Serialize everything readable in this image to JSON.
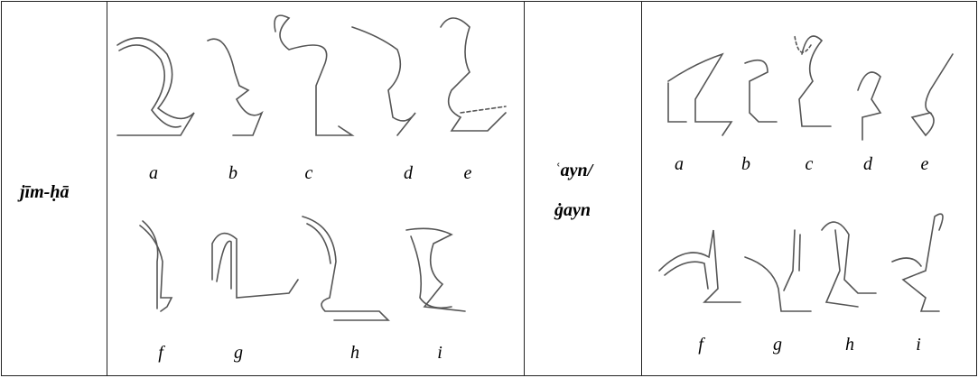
{
  "rows": [
    {
      "label": [
        "jīm-ḥā"
      ],
      "letters": [
        "a",
        "b",
        "c",
        "d",
        "e",
        "f",
        "g",
        "h",
        "i"
      ]
    },
    {
      "label": [
        "ʿayn/",
        "ġayn"
      ],
      "letters": [
        "a",
        "b",
        "c",
        "d",
        "e",
        "f",
        "g",
        "h",
        "i"
      ]
    }
  ]
}
